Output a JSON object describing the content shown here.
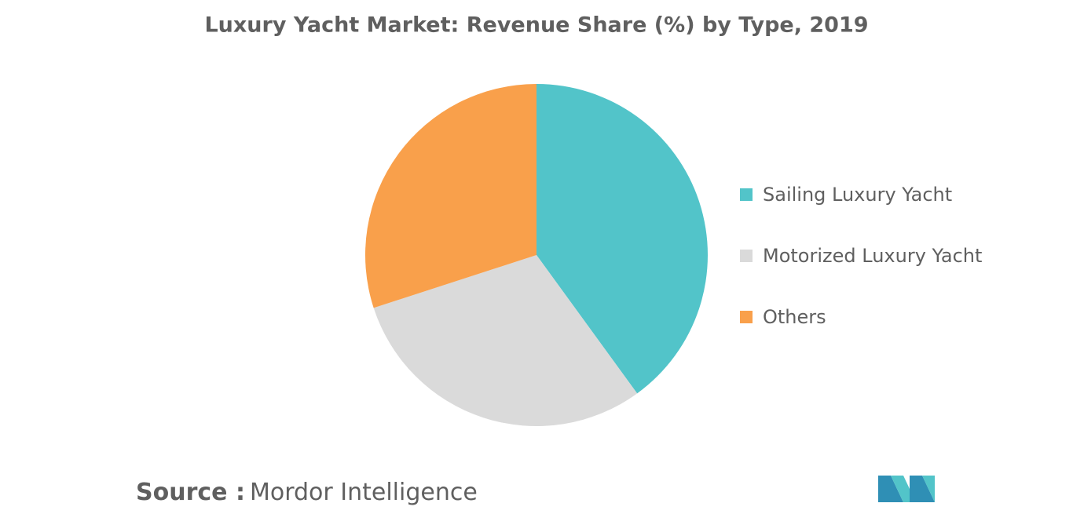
{
  "chart_data": {
    "type": "pie",
    "title": "Luxury Yacht Market: Revenue Share (%) by Type, 2019",
    "categories": [
      "Sailing Luxury Yacht",
      "Motorized Luxury Yacht",
      "Others"
    ],
    "values": [
      40,
      30,
      30
    ],
    "colors": [
      "#52c4c9",
      "#dadada",
      "#f9a04b"
    ],
    "legend": "right"
  },
  "source": {
    "label": "Source :",
    "text": "Mordor Intelligence"
  }
}
